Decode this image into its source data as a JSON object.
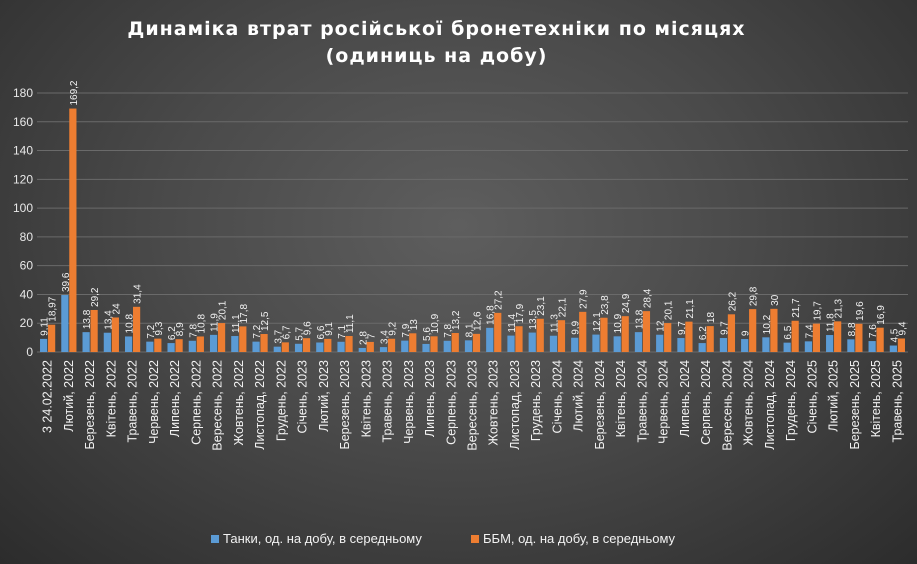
{
  "chart_data": {
    "type": "bar",
    "title": "Динаміка  втрат російської  бронетехніки  по місяцях",
    "subtitle": "(одиниць  на добу)",
    "ylim": [
      0,
      180
    ],
    "yticks": [
      0,
      20,
      40,
      60,
      80,
      100,
      120,
      140,
      160,
      180
    ],
    "grid": true,
    "legend_position": "bottom",
    "categories": [
      "3 24.02.2022",
      "Лютий, 2022",
      "Березень, 2022",
      "Квітень, 2022",
      "Травень, 2022",
      "Червень, 2022",
      "Липень, 2022",
      "Серпень, 2022",
      "Вересень, 2022",
      "Жовтень, 2022",
      "Листопад, 2022",
      "Грудень, 2022",
      "Січень, 2023",
      "Лютий, 2023",
      "Березень, 2023",
      "Квітень, 2023",
      "Травень, 2023",
      "Червень, 2023",
      "Липень, 2023",
      "Серпень, 2023",
      "Вересень, 2023",
      "Жовтень, 2023",
      "Листопад, 2023",
      "Грудень, 2023",
      "Січень, 2024",
      "Лютий, 2024",
      "Березень, 2024",
      "Квітень, 2024",
      "Травень, 2024",
      "Червень, 2024",
      "Липень, 2024",
      "Серпень, 2024",
      "Вересень, 2024",
      "Жовтень, 2024",
      "Листопад, 2024",
      "Грудень, 2024",
      "Січень, 2025",
      "Лютий, 2025",
      "Березень, 2025",
      "Квітень, 2025",
      "Травень, 2025"
    ],
    "series": [
      {
        "name": "Танки, од. на добу, в середньому",
        "color": "#5b9bd5",
        "values": [
          9.11,
          39.6,
          13.8,
          13.4,
          10.8,
          7.2,
          6.2,
          7.8,
          11.9,
          11.1,
          7.2,
          3.7,
          5.7,
          6.6,
          7.1,
          2.8,
          3.4,
          7.9,
          5.6,
          7.8,
          8.1,
          16.8,
          11.4,
          13.5,
          11.3,
          9.9,
          12.1,
          10.9,
          13.8,
          12,
          9.7,
          6.2,
          9.7,
          9,
          10.2,
          6.5,
          7.4,
          11.8,
          8.8,
          7.6,
          4.5
        ],
        "labels": [
          "9,11",
          "39,6",
          "13,8",
          "13,4",
          "10,8",
          "7,2",
          "6,2",
          "7,8",
          "11,9",
          "11,1",
          "7,2",
          "3,7",
          "5,7",
          "6,6",
          "7,1",
          "2,8",
          "3,4",
          "7,9",
          "5,6",
          "7,8",
          "8,1",
          "16,8",
          "11,4",
          "13,5",
          "11,3",
          "9,9",
          "12,1",
          "10,9",
          "13,8",
          "12",
          "9,7",
          "6,2",
          "9,7",
          "9",
          "10,2",
          "6,5",
          "7,4",
          "11,8",
          "8,8",
          "7,6",
          "4,5"
        ]
      },
      {
        "name": "ББМ, од. на добу, в середньому",
        "color": "#ed7d31",
        "values": [
          18.97,
          169.2,
          29.2,
          24,
          31.4,
          9.3,
          8.9,
          10.8,
          20.1,
          17.8,
          12.5,
          6.7,
          9.6,
          9.1,
          11.1,
          7,
          9.2,
          13,
          10.9,
          13.2,
          12.6,
          27.2,
          17.9,
          23.1,
          22.1,
          27.9,
          23.8,
          24.9,
          28.4,
          20.1,
          21.1,
          18,
          26.2,
          29.8,
          30,
          21.7,
          19.7,
          21.3,
          19.6,
          16.9,
          9.4
        ],
        "labels": [
          "18,97",
          "169,2",
          "29,2",
          "24",
          "31,4",
          "9,3",
          "8,9",
          "10,8",
          "20,1",
          "17,8",
          "12,5",
          "6,7",
          "9,6",
          "9,1",
          "11,1",
          "7",
          "9,2",
          "13",
          "10,9",
          "13,2",
          "12,6",
          "27,2",
          "17,9",
          "23,1",
          "22,1",
          "27,9",
          "23,8",
          "24,9",
          "28,4",
          "20,1",
          "21,1",
          "18",
          "26,2",
          "29,8",
          "30",
          "21,7",
          "19,7",
          "21,3",
          "19,6",
          "16,9",
          "9,4"
        ]
      }
    ]
  }
}
